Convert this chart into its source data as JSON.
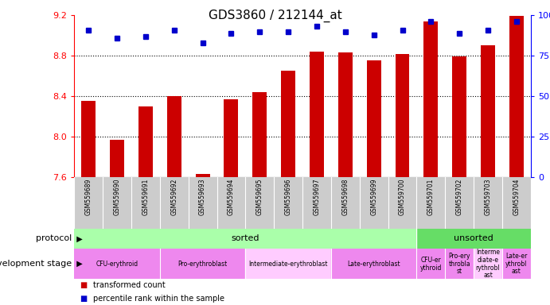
{
  "title": "GDS3860 / 212144_at",
  "samples": [
    "GSM559689",
    "GSM559690",
    "GSM559691",
    "GSM559692",
    "GSM559693",
    "GSM559694",
    "GSM559695",
    "GSM559696",
    "GSM559697",
    "GSM559698",
    "GSM559699",
    "GSM559700",
    "GSM559701",
    "GSM559702",
    "GSM559703",
    "GSM559704"
  ],
  "bar_values": [
    8.35,
    7.97,
    8.3,
    8.4,
    7.63,
    8.37,
    8.44,
    8.65,
    8.84,
    8.83,
    8.75,
    8.82,
    9.14,
    8.79,
    8.9,
    9.19
  ],
  "percentile_values": [
    91,
    86,
    87,
    91,
    83,
    89,
    90,
    90,
    93,
    90,
    88,
    91,
    96,
    89,
    91,
    96
  ],
  "bar_color": "#cc0000",
  "percentile_color": "#0000cc",
  "ylim_left": [
    7.6,
    9.2
  ],
  "ylim_right": [
    0,
    100
  ],
  "yticks_left": [
    7.6,
    8.0,
    8.4,
    8.8,
    9.2
  ],
  "yticks_right": [
    0,
    25,
    50,
    75,
    100
  ],
  "ytick_labels_right": [
    "0",
    "25",
    "50",
    "75",
    "100%"
  ],
  "gridlines": [
    8.0,
    8.4,
    8.8
  ],
  "protocol_sorted_label": "sorted",
  "protocol_unsorted_label": "unsorted",
  "protocol_sorted_color": "#aaffaa",
  "protocol_unsorted_color": "#66dd66",
  "protocol_sorted_range": [
    0,
    11
  ],
  "protocol_unsorted_range": [
    12,
    15
  ],
  "dev_groups": [
    {
      "label": "CFU-erythroid",
      "start": 0,
      "end": 2,
      "color": "#ee88ee"
    },
    {
      "label": "Pro-erythroblast",
      "start": 3,
      "end": 5,
      "color": "#ee88ee"
    },
    {
      "label": "Intermediate-erythroblast",
      "start": 6,
      "end": 8,
      "color": "#ffccff"
    },
    {
      "label": "Late-erythroblast",
      "start": 9,
      "end": 11,
      "color": "#ee88ee"
    },
    {
      "label": "CFU-er\nythroid",
      "start": 12,
      "end": 12,
      "color": "#ee88ee"
    },
    {
      "label": "Pro-ery\nthrobla\nst",
      "start": 13,
      "end": 13,
      "color": "#ee88ee"
    },
    {
      "label": "Interme\ndiate-e\nrythrobl\nast",
      "start": 14,
      "end": 14,
      "color": "#ffccff"
    },
    {
      "label": "Late-er\nythrobl\nast",
      "start": 15,
      "end": 15,
      "color": "#ee88ee"
    }
  ],
  "sample_bg_color": "#cccccc",
  "legend_red_label": "transformed count",
  "legend_blue_label": "percentile rank within the sample",
  "background_color": "#ffffff",
  "tick_fontsize": 8,
  "title_fontsize": 11,
  "bar_width": 0.5
}
